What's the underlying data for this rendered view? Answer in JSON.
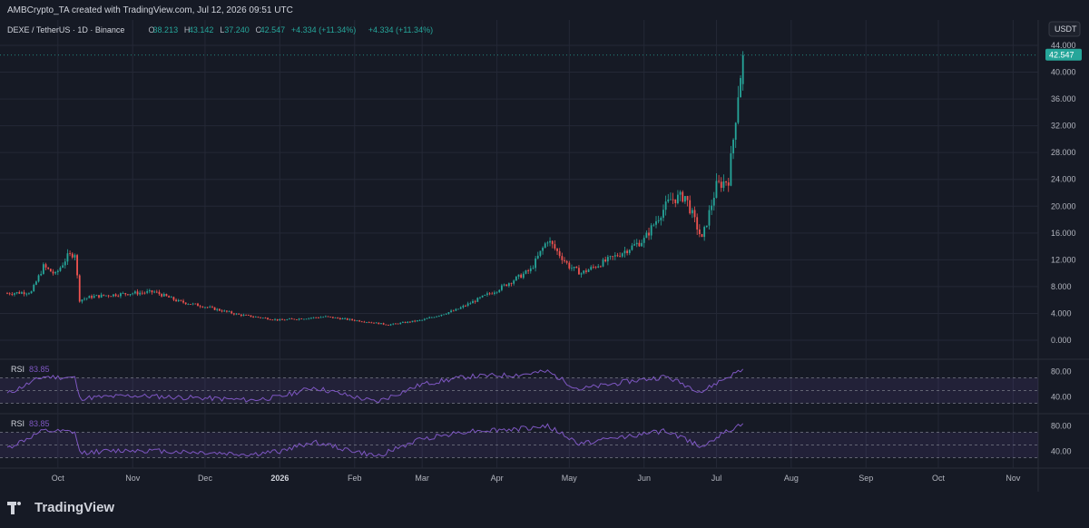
{
  "header": {
    "credit": "AMBCrypto_TA created with TradingView.com, Jul 12, 2026 09:51 UTC",
    "symbol": "DEXE / TetherUS · 1D · Binance",
    "ohlc": {
      "o_label": "O",
      "o_value": "38.213",
      "h_label": "H",
      "h_value": "43.142",
      "l_label": "L",
      "l_value": "37.240",
      "c_label": "C",
      "c_value": "42.547",
      "change": "+4.334 (+11.34%)",
      "change2": "+4.334 (+11.34%)"
    },
    "currency_button": "USDT"
  },
  "colors": {
    "background": "#161a25",
    "grid": "#242836",
    "up": "#26a69a",
    "down": "#ef5350",
    "rsi_line": "#7e57c2",
    "price_tag": "#26a69a",
    "text": "#b2b5be"
  },
  "chart_data": [
    {
      "type": "candlestick",
      "title": "DEXE / TetherUS · 1D · Binance",
      "ylim": [
        0,
        44
      ],
      "y_ticks": [
        "44.000",
        "40.000",
        "36.000",
        "32.000",
        "28.000",
        "24.000",
        "20.000",
        "16.000",
        "12.000",
        "8.000",
        "4.000",
        "0.000"
      ],
      "last_price": 42.547,
      "last_price_label": "42.547",
      "x_tick_labels": [
        "Oct",
        "Nov",
        "Dec",
        "2026",
        "Feb",
        "Mar",
        "Apr",
        "May",
        "Jun",
        "Jul",
        "Aug",
        "Sep",
        "Oct",
        "Nov",
        "De"
      ],
      "anchor_points": [
        [
          "2025-09-10",
          7.0
        ],
        [
          "2025-09-20",
          7.2
        ],
        [
          "2025-09-25",
          11.0
        ],
        [
          "2025-09-30",
          9.8
        ],
        [
          "2025-10-05",
          12.5
        ],
        [
          "2025-10-08",
          13.0
        ],
        [
          "2025-10-10",
          6.0
        ],
        [
          "2025-10-15",
          6.5
        ],
        [
          "2025-10-31",
          7.0
        ],
        [
          "2025-11-10",
          7.2
        ],
        [
          "2025-11-20",
          5.8
        ],
        [
          "2025-12-01",
          5.0
        ],
        [
          "2025-12-15",
          3.8
        ],
        [
          "2026-01-01",
          3.0
        ],
        [
          "2026-01-20",
          3.5
        ],
        [
          "2026-02-05",
          2.8
        ],
        [
          "2026-02-15",
          2.3
        ],
        [
          "2026-03-01",
          3.0
        ],
        [
          "2026-03-15",
          4.5
        ],
        [
          "2026-04-01",
          7.5
        ],
        [
          "2026-04-15",
          10.5
        ],
        [
          "2026-04-22",
          15.0
        ],
        [
          "2026-05-01",
          11.0
        ],
        [
          "2026-05-06",
          10.0
        ],
        [
          "2026-05-20",
          12.5
        ],
        [
          "2026-06-01",
          15.0
        ],
        [
          "2026-06-08",
          19.0
        ],
        [
          "2026-06-12",
          21.0
        ],
        [
          "2026-06-18",
          21.5
        ],
        [
          "2026-06-25",
          15.0
        ],
        [
          "2026-07-01",
          23.0
        ],
        [
          "2026-07-06",
          24.0
        ],
        [
          "2026-07-08",
          30.0
        ],
        [
          "2026-07-10",
          37.0
        ],
        [
          "2026-07-12",
          42.547
        ]
      ]
    },
    {
      "type": "line",
      "name": "RSI",
      "label": "RSI",
      "value_label": "83.85",
      "ylim": [
        20,
        90
      ],
      "y_ticks": [
        "80.00",
        "40.00"
      ],
      "bands": [
        70,
        50,
        30
      ],
      "anchor_points": [
        [
          "2025-09-10",
          45
        ],
        [
          "2025-09-25",
          72
        ],
        [
          "2025-10-08",
          70
        ],
        [
          "2025-10-10",
          38
        ],
        [
          "2025-11-01",
          42
        ],
        [
          "2025-12-01",
          38
        ],
        [
          "2025-12-20",
          35
        ],
        [
          "2026-01-01",
          40
        ],
        [
          "2026-01-15",
          55
        ],
        [
          "2026-02-10",
          32
        ],
        [
          "2026-03-01",
          60
        ],
        [
          "2026-03-20",
          72
        ],
        [
          "2026-04-10",
          75
        ],
        [
          "2026-04-22",
          80
        ],
        [
          "2026-05-05",
          52
        ],
        [
          "2026-05-25",
          64
        ],
        [
          "2026-06-10",
          72
        ],
        [
          "2026-06-25",
          48
        ],
        [
          "2026-07-01",
          62
        ],
        [
          "2026-07-12",
          83.85
        ]
      ]
    },
    {
      "type": "line",
      "name": "RSI",
      "label": "RSI",
      "value_label": "83.85",
      "ylim": [
        20,
        90
      ],
      "y_ticks": [
        "80.00",
        "40.00"
      ],
      "bands": [
        70,
        50,
        30
      ],
      "anchor_points": [
        [
          "2025-09-10",
          45
        ],
        [
          "2025-09-25",
          72
        ],
        [
          "2025-10-08",
          70
        ],
        [
          "2025-10-10",
          38
        ],
        [
          "2025-11-01",
          42
        ],
        [
          "2025-12-01",
          38
        ],
        [
          "2025-12-20",
          35
        ],
        [
          "2026-01-01",
          40
        ],
        [
          "2026-01-15",
          55
        ],
        [
          "2026-02-10",
          32
        ],
        [
          "2026-03-01",
          60
        ],
        [
          "2026-03-20",
          72
        ],
        [
          "2026-04-10",
          75
        ],
        [
          "2026-04-22",
          80
        ],
        [
          "2026-05-05",
          52
        ],
        [
          "2026-05-25",
          64
        ],
        [
          "2026-06-10",
          72
        ],
        [
          "2026-06-25",
          48
        ],
        [
          "2026-07-01",
          62
        ],
        [
          "2026-07-12",
          83.85
        ]
      ]
    }
  ],
  "footer": {
    "brand": "TradingView"
  }
}
